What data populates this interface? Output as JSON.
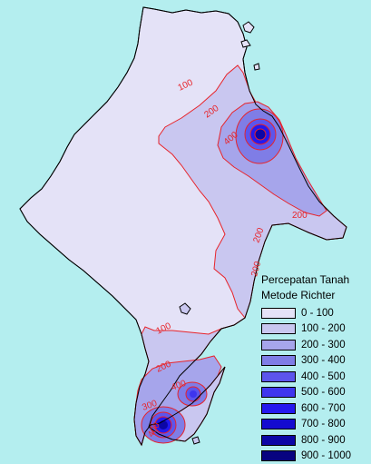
{
  "legend": {
    "title_line1": "Percepatan Tanah",
    "title_line2": "Metode Richter",
    "classes": [
      {
        "label": "0 - 100",
        "color": "#e4e2f7"
      },
      {
        "label": "100 - 200",
        "color": "#c9c7f0"
      },
      {
        "label": "200 - 300",
        "color": "#a6a5eb"
      },
      {
        "label": "300 - 400",
        "color": "#7f7de6"
      },
      {
        "label": "400 - 500",
        "color": "#5c55ec"
      },
      {
        "label": "500 - 600",
        "color": "#3e35ee"
      },
      {
        "label": "600 - 700",
        "color": "#2419ee"
      },
      {
        "label": "700 - 800",
        "color": "#140bd0"
      },
      {
        "label": "800 - 900",
        "color": "#0c06a6"
      },
      {
        "label": "900 - 1000",
        "color": "#070380"
      }
    ]
  },
  "contour_labels": [
    "100",
    "200",
    "400",
    "200",
    "200",
    "200",
    "100",
    "200",
    "400",
    "300",
    "400"
  ],
  "colors": {
    "sea": "#b4eeef",
    "contour_line": "#e8242a",
    "coastline": "#000000"
  }
}
